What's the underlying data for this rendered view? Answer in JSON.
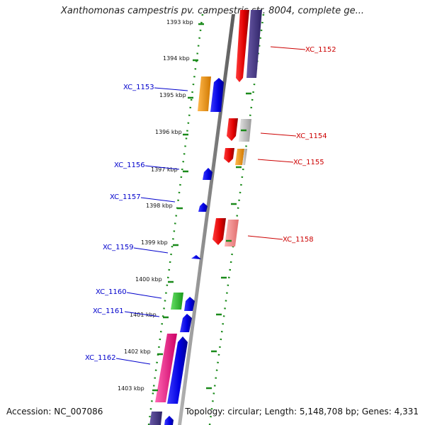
{
  "title": "Xanthomonas campestris pv. campestris str. 8004, complete ge...",
  "footer": {
    "accession": "Accession: NC_007086",
    "summary": "Topology: circular; Length: 5,148,708 bp; Genes: 4,331"
  },
  "colors": {
    "strand_plus": "#cc0000",
    "strand_minus": "#0000cc",
    "backbone": "#8a8a8a",
    "guide": "#1a8a1a"
  },
  "kbp_labels": [
    "1393 kbp",
    "1394 kbp",
    "1395 kbp",
    "1396 kbp",
    "1397 kbp",
    "1398 kbp",
    "1399 kbp",
    "1400 kbp",
    "1401 kbp",
    "1402 kbp",
    "1403 kbp"
  ],
  "gene_labels": [
    "XC_1152",
    "XC_1153",
    "XC_1154",
    "XC_1155",
    "XC_1156",
    "XC_1157",
    "XC_1158",
    "XC_1159",
    "XC_1160",
    "XC_1161",
    "XC_1162"
  ]
}
